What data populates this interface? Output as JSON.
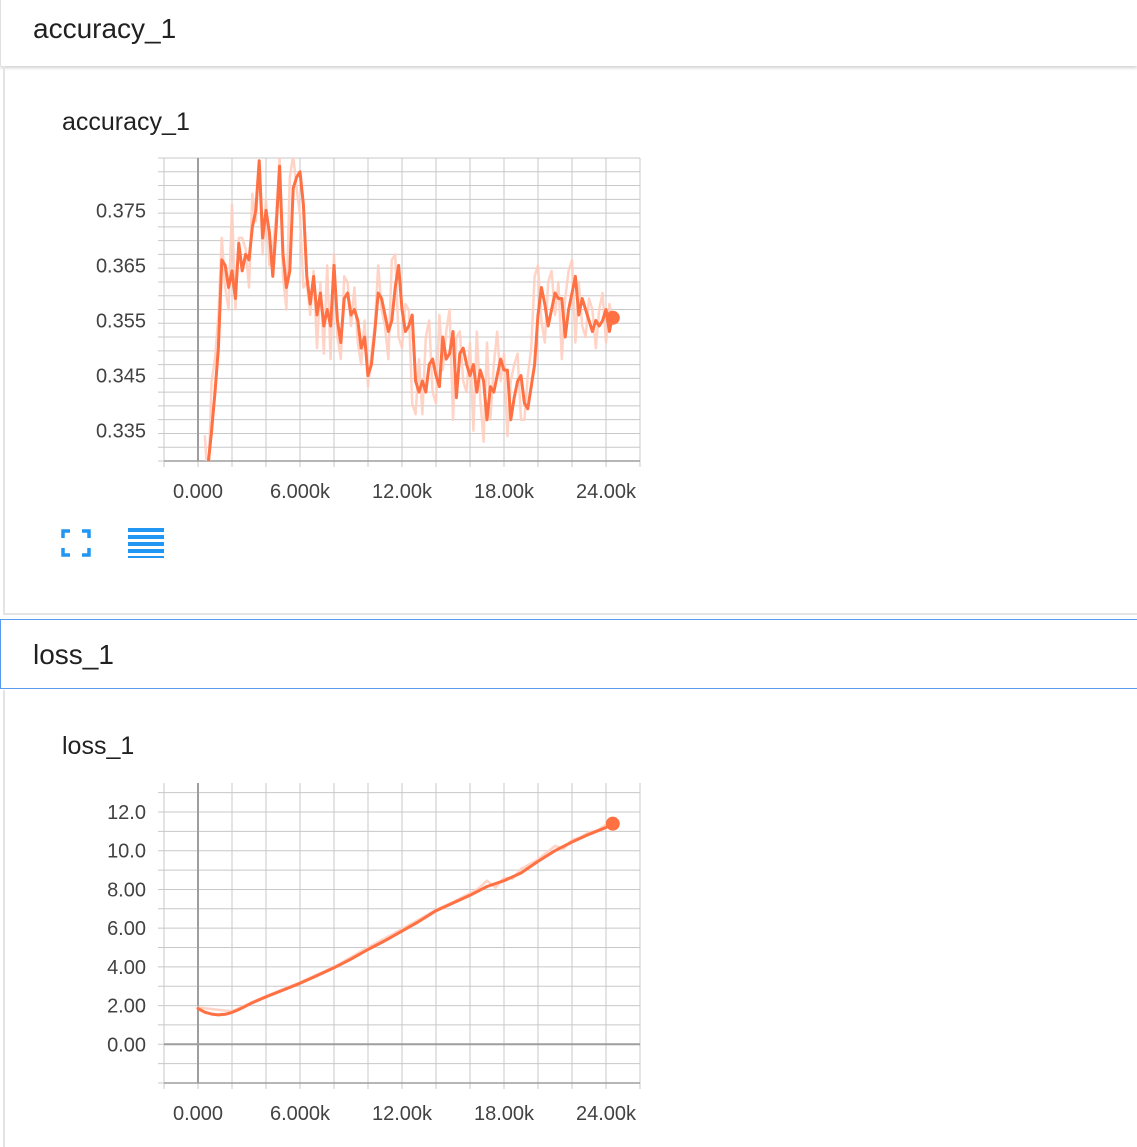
{
  "colors": {
    "line": "#ff7043",
    "line_light": "#ffccbc",
    "grid": "#c8c8c8",
    "axis": "#9e9e9e",
    "accent": "#2196f3"
  },
  "sections": [
    {
      "header": "accuracy_1",
      "card_title": "accuracy_1",
      "icons": [
        "fullscreen-icon",
        "list-icon"
      ]
    },
    {
      "header": "loss_1",
      "card_title": "loss_1"
    }
  ],
  "chart_data": [
    {
      "type": "line",
      "title": "accuracy_1",
      "xlabel": "",
      "ylabel": "",
      "xlim": [
        -2000,
        26000
      ],
      "ylim": [
        0.3295,
        0.3845
      ],
      "x_ticks": [
        0,
        6000,
        12000,
        18000,
        24000
      ],
      "x_tick_labels": [
        "0.000",
        "6.000k",
        "12.00k",
        "18.00k",
        "24.00k"
      ],
      "y_ticks": [
        0.335,
        0.345,
        0.355,
        0.365,
        0.375
      ],
      "y_tick_labels": [
        "0.335",
        "0.345",
        "0.355",
        "0.365",
        "0.375"
      ],
      "grid": true,
      "series": [
        {
          "style": "smoothed",
          "x": [
            600,
            800,
            1000,
            1200,
            1400,
            1600,
            1800,
            2000,
            2200,
            2400,
            2600,
            2800,
            3000,
            3200,
            3400,
            3600,
            3800,
            4000,
            4200,
            4400,
            4600,
            4800,
            5000,
            5200,
            5400,
            5600,
            5800,
            6000,
            6200,
            6400,
            6600,
            6800,
            7000,
            7200,
            7400,
            7600,
            7800,
            8000,
            8200,
            8400,
            8600,
            8800,
            9000,
            9200,
            9400,
            9600,
            9800,
            10000,
            10200,
            10400,
            10600,
            10800,
            11000,
            11200,
            11400,
            11600,
            11800,
            12000,
            12200,
            12400,
            12600,
            12800,
            13000,
            13200,
            13400,
            13600,
            13800,
            14000,
            14200,
            14400,
            14600,
            14800,
            15000,
            15200,
            15400,
            15600,
            15800,
            16000,
            16200,
            16400,
            16600,
            16800,
            17000,
            17200,
            17400,
            17600,
            17800,
            18000,
            18200,
            18400,
            18600,
            18800,
            19000,
            19200,
            19400,
            19600,
            19800,
            20000,
            20200,
            20400,
            20600,
            20800,
            21000,
            21200,
            21400,
            21600,
            21800,
            22000,
            22200,
            22400,
            22600,
            22800,
            23000,
            23200,
            23400,
            23600,
            23800,
            24000,
            24200,
            24400
          ],
          "y": [
            0.329,
            0.335,
            0.342,
            0.35,
            0.366,
            0.365,
            0.361,
            0.364,
            0.359,
            0.369,
            0.364,
            0.367,
            0.366,
            0.372,
            0.375,
            0.384,
            0.37,
            0.375,
            0.371,
            0.363,
            0.372,
            0.383,
            0.367,
            0.361,
            0.364,
            0.379,
            0.381,
            0.382,
            0.376,
            0.363,
            0.358,
            0.363,
            0.356,
            0.36,
            0.354,
            0.357,
            0.354,
            0.365,
            0.355,
            0.351,
            0.359,
            0.36,
            0.356,
            0.357,
            0.355,
            0.35,
            0.352,
            0.345,
            0.347,
            0.353,
            0.36,
            0.359,
            0.356,
            0.353,
            0.355,
            0.361,
            0.365,
            0.357,
            0.353,
            0.354,
            0.356,
            0.344,
            0.342,
            0.344,
            0.342,
            0.347,
            0.348,
            0.345,
            0.343,
            0.352,
            0.348,
            0.349,
            0.353,
            0.341,
            0.349,
            0.35,
            0.347,
            0.345,
            0.347,
            0.342,
            0.346,
            0.344,
            0.337,
            0.343,
            0.342,
            0.345,
            0.348,
            0.346,
            0.346,
            0.337,
            0.341,
            0.344,
            0.345,
            0.34,
            0.339,
            0.343,
            0.347,
            0.356,
            0.361,
            0.358,
            0.354,
            0.357,
            0.36,
            0.359,
            0.359,
            0.352,
            0.357,
            0.36,
            0.363,
            0.356,
            0.359,
            0.357,
            0.355,
            0.353,
            0.355,
            0.354,
            0.355,
            0.357,
            0.353,
            0.356
          ]
        },
        {
          "style": "raw",
          "x": [
            400,
            600,
            800,
            1000,
            1200,
            1400,
            1600,
            1800,
            2000,
            2200,
            2400,
            2600,
            2800,
            3000,
            3200,
            3400,
            3600,
            3800,
            4000,
            4200,
            4400,
            4600,
            4800,
            5000,
            5200,
            5400,
            5600,
            5800,
            6000,
            6200,
            6400,
            6600,
            6800,
            7000,
            7200,
            7400,
            7600,
            7800,
            8000,
            8200,
            8400,
            8600,
            8800,
            9000,
            9200,
            9400,
            9600,
            9800,
            10000,
            10200,
            10400,
            10600,
            10800,
            11000,
            11200,
            11400,
            11600,
            11800,
            12000,
            12200,
            12400,
            12600,
            12800,
            13000,
            13200,
            13400,
            13600,
            13800,
            14000,
            14200,
            14400,
            14600,
            14800,
            15000,
            15200,
            15400,
            15600,
            15800,
            16000,
            16200,
            16400,
            16600,
            16800,
            17000,
            17200,
            17400,
            17600,
            17800,
            18000,
            18200,
            18400,
            18600,
            18800,
            19000,
            19200,
            19400,
            19600,
            19800,
            20000,
            20200,
            20400,
            20600,
            20800,
            21000,
            21200,
            21400,
            21600,
            21800,
            22000,
            22200,
            22400,
            22600,
            22800,
            23000,
            23200,
            23400,
            23600,
            23800,
            24000,
            24200,
            24400
          ],
          "y": [
            0.334,
            0.325,
            0.344,
            0.348,
            0.356,
            0.37,
            0.361,
            0.357,
            0.376,
            0.357,
            0.37,
            0.37,
            0.368,
            0.361,
            0.378,
            0.373,
            0.384,
            0.367,
            0.377,
            0.365,
            0.368,
            0.374,
            0.385,
            0.363,
            0.357,
            0.381,
            0.385,
            0.379,
            0.374,
            0.361,
            0.362,
            0.356,
            0.364,
            0.35,
            0.362,
            0.349,
            0.365,
            0.348,
            0.367,
            0.352,
            0.348,
            0.363,
            0.362,
            0.354,
            0.361,
            0.351,
            0.347,
            0.355,
            0.343,
            0.349,
            0.354,
            0.365,
            0.357,
            0.354,
            0.348,
            0.366,
            0.367,
            0.352,
            0.35,
            0.358,
            0.357,
            0.34,
            0.338,
            0.348,
            0.338,
            0.352,
            0.355,
            0.342,
            0.34,
            0.356,
            0.346,
            0.353,
            0.357,
            0.337,
            0.352,
            0.353,
            0.344,
            0.342,
            0.351,
            0.335,
            0.353,
            0.341,
            0.333,
            0.351,
            0.337,
            0.347,
            0.353,
            0.344,
            0.349,
            0.334,
            0.344,
            0.347,
            0.349,
            0.337,
            0.337,
            0.345,
            0.35,
            0.363,
            0.365,
            0.355,
            0.351,
            0.362,
            0.364,
            0.356,
            0.362,
            0.348,
            0.359,
            0.364,
            0.366,
            0.351,
            0.362,
            0.354,
            0.352,
            0.359,
            0.357,
            0.35,
            0.357,
            0.36,
            0.351,
            0.358,
            0.355
          ]
        }
      ],
      "last_point": {
        "x": 24400,
        "y": 0.3555
      }
    },
    {
      "type": "line",
      "title": "loss_1",
      "xlabel": "",
      "ylabel": "",
      "xlim": [
        -2000,
        26000
      ],
      "ylim": [
        -2.0,
        13.5
      ],
      "x_ticks": [
        0,
        6000,
        12000,
        18000,
        24000
      ],
      "x_tick_labels": [
        "0.000",
        "6.000k",
        "12.00k",
        "18.00k",
        "24.00k"
      ],
      "y_ticks": [
        0,
        2,
        4,
        6,
        8,
        10,
        12
      ],
      "y_tick_labels": [
        "0.00",
        "2.00",
        "4.00",
        "6.00",
        "8.00",
        "10.0",
        "12.0"
      ],
      "grid": true,
      "series": [
        {
          "style": "smoothed",
          "x": [
            0,
            400,
            800,
            1200,
            1600,
            2000,
            2400,
            2800,
            3200,
            4000,
            5000,
            6000,
            7000,
            8000,
            9000,
            10000,
            11000,
            12000,
            13000,
            14000,
            15000,
            16000,
            17000,
            18000,
            19000,
            20000,
            21000,
            22000,
            23000,
            24000,
            24400
          ],
          "y": [
            1.85,
            1.66,
            1.56,
            1.52,
            1.55,
            1.65,
            1.8,
            1.97,
            2.15,
            2.45,
            2.8,
            3.15,
            3.55,
            3.95,
            4.4,
            4.9,
            5.35,
            5.85,
            6.35,
            6.9,
            7.3,
            7.7,
            8.15,
            8.45,
            8.85,
            9.45,
            10.0,
            10.45,
            10.85,
            11.2,
            11.4
          ]
        },
        {
          "style": "raw",
          "x": [
            0,
            2000,
            4000,
            6000,
            8000,
            10000,
            12000,
            14000,
            15000,
            16000,
            16500,
            17000,
            17500,
            18000,
            18500,
            19000,
            20000,
            20500,
            21000,
            21500,
            22000,
            22500,
            23000,
            23500,
            24000,
            24400
          ],
          "y": [
            1.9,
            1.7,
            2.5,
            3.2,
            4.0,
            5.0,
            5.95,
            6.95,
            7.35,
            7.8,
            8.05,
            8.45,
            8.1,
            8.6,
            8.55,
            9.05,
            9.55,
            9.9,
            10.25,
            10.1,
            10.55,
            10.7,
            10.95,
            11.05,
            11.35,
            11.4
          ]
        }
      ],
      "last_point": {
        "x": 24400,
        "y": 11.4
      }
    }
  ]
}
